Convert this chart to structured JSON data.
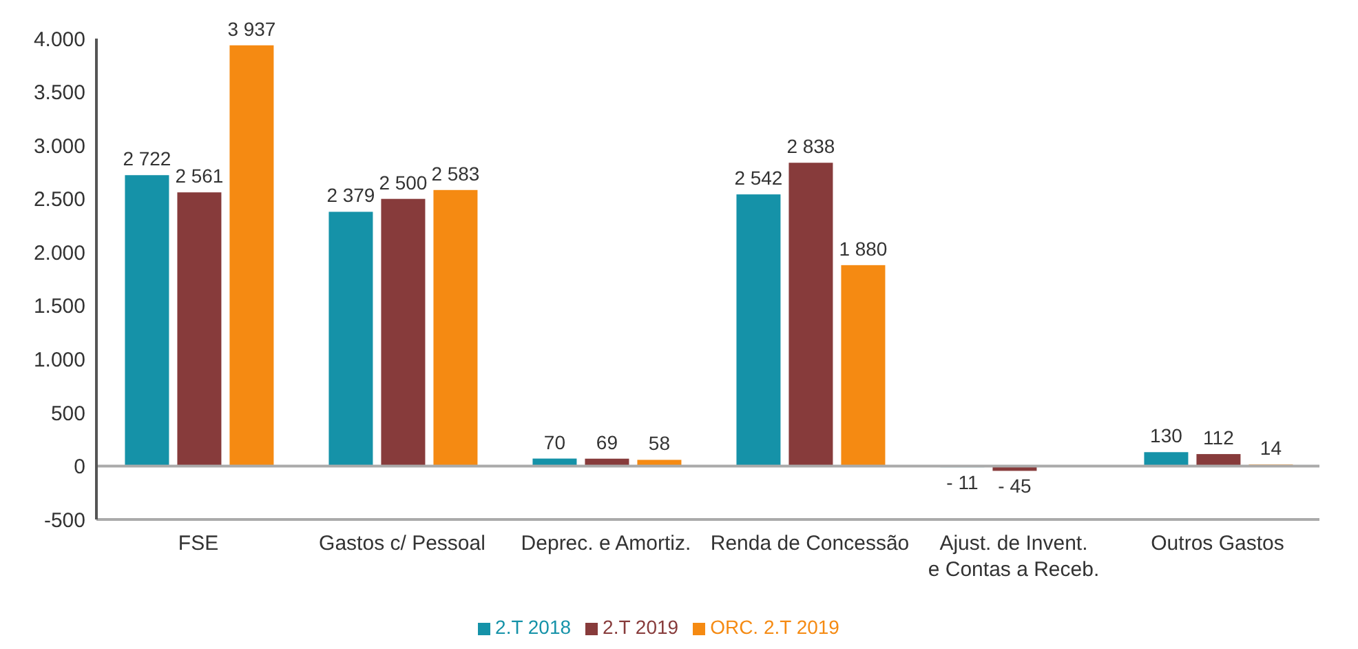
{
  "chart_data": {
    "type": "bar",
    "categories": [
      "FSE",
      "Gastos c/ Pessoal",
      "Deprec. e Amortiz.",
      "Renda de Concessão",
      "Ajust. de Invent. e Contas a Receb.",
      "Outros Gastos"
    ],
    "series": [
      {
        "name": "2.T 2018",
        "color": "#1592a8",
        "values": [
          2722,
          2379,
          70,
          2542,
          -11,
          130
        ],
        "value_labels": [
          "2 722",
          "2 379",
          "70",
          "2 542",
          "- 11",
          "130"
        ]
      },
      {
        "name": "2.T 2019",
        "color": "#873b3b",
        "values": [
          2561,
          2500,
          69,
          2838,
          -45,
          112
        ],
        "value_labels": [
          "2 561",
          "2 500",
          "69",
          "2 838",
          "- 45",
          "112"
        ]
      },
      {
        "name": "ORC. 2.T 2019",
        "color": "#f58a12",
        "values": [
          3937,
          2583,
          58,
          1880,
          null,
          14
        ],
        "value_labels": [
          "3 937",
          "2 583",
          "58",
          "1 880",
          null,
          "14"
        ]
      }
    ],
    "ylim": [
      -500,
      4000
    ],
    "yticks": [
      {
        "value": -500,
        "label": "-500"
      },
      {
        "value": 0,
        "label": "0"
      },
      {
        "value": 500,
        "label": "500"
      },
      {
        "value": 1000,
        "label": "1.000"
      },
      {
        "value": 1500,
        "label": "1.500"
      },
      {
        "value": 2000,
        "label": "2.000"
      },
      {
        "value": 2500,
        "label": "2.500"
      },
      {
        "value": 3000,
        "label": "3.000"
      },
      {
        "value": 3500,
        "label": "3.500"
      },
      {
        "value": 4000,
        "label": "4.000"
      }
    ],
    "ref_lines": [
      {
        "axis": "y",
        "value": 0,
        "color": "#aaaaaa"
      }
    ],
    "grid": false,
    "legend": "bottom"
  }
}
